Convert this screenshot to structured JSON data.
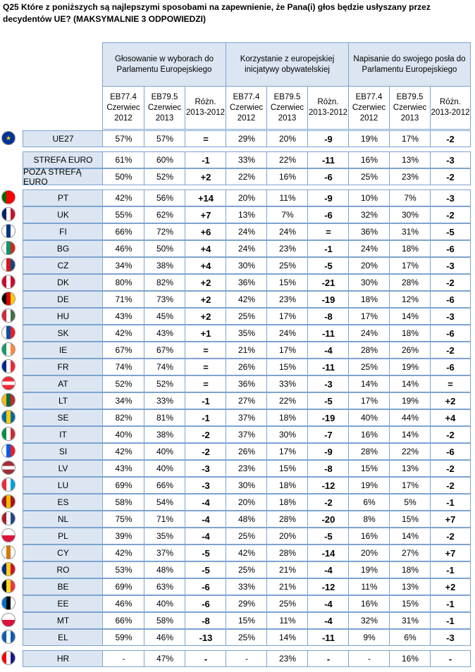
{
  "title": "Q25 Które z poniższych są najlepszymi sposobami na zapewnienie, że Pana(i) głos będzie usłyszany przez decydentów UE? (MAKSYMALNIE 3 ODPOWIEDZI)",
  "groups": [
    "Głosowanie w wyborach do Parlamentu Europejskiego",
    "Korzystanie z europejskiej inicjatywy obywatelskiej",
    "Napisanie do swojego posła do Parlamentu Europejskiego"
  ],
  "subheaders": [
    "EB77.4 Czerwiec 2012",
    "EB79.5 Czerwiec 2013",
    "Różn. 2013-2012"
  ],
  "rows": [
    {
      "label": "UE27",
      "flag": [
        "#003399",
        "#003399",
        "#003399"
      ],
      "v": [
        "57%",
        "57%",
        "=",
        "29%",
        "20%",
        "-9",
        "19%",
        "17%",
        "-2"
      ]
    },
    {
      "label": "STREFA EURO",
      "flag": null,
      "v": [
        "61%",
        "60%",
        "-1",
        "33%",
        "22%",
        "-11",
        "16%",
        "13%",
        "-3"
      ]
    },
    {
      "label": "POZA STREFĄ EURO",
      "flag": null,
      "v": [
        "50%",
        "52%",
        "+2",
        "22%",
        "16%",
        "-6",
        "25%",
        "23%",
        "-2"
      ]
    },
    {
      "label": "PT",
      "flag": [
        "#006600",
        "#ff0000",
        "#ff0000"
      ],
      "v": [
        "42%",
        "56%",
        "+14",
        "20%",
        "11%",
        "-9",
        "10%",
        "7%",
        "-3"
      ]
    },
    {
      "label": "UK",
      "flag": [
        "#012169",
        "#ffffff",
        "#c8102e"
      ],
      "v": [
        "55%",
        "62%",
        "+7",
        "13%",
        "7%",
        "-6",
        "32%",
        "30%",
        "-2"
      ]
    },
    {
      "label": "FI",
      "flag": [
        "#ffffff",
        "#003580",
        "#ffffff"
      ],
      "v": [
        "66%",
        "72%",
        "+6",
        "24%",
        "24%",
        "=",
        "36%",
        "31%",
        "-5"
      ]
    },
    {
      "label": "BG",
      "flag": [
        "#ffffff",
        "#00966e",
        "#d62612"
      ],
      "v": [
        "46%",
        "50%",
        "+4",
        "24%",
        "23%",
        "-1",
        "24%",
        "18%",
        "-6"
      ]
    },
    {
      "label": "CZ",
      "flag": [
        "#ffffff",
        "#d7141a",
        "#11457e"
      ],
      "v": [
        "34%",
        "38%",
        "+4",
        "30%",
        "25%",
        "-5",
        "20%",
        "17%",
        "-3"
      ]
    },
    {
      "label": "DK",
      "flag": [
        "#c60c30",
        "#ffffff",
        "#c60c30"
      ],
      "v": [
        "80%",
        "82%",
        "+2",
        "36%",
        "15%",
        "-21",
        "30%",
        "28%",
        "-2"
      ]
    },
    {
      "label": "DE",
      "flag": [
        "#000000",
        "#dd0000",
        "#ffce00"
      ],
      "v": [
        "71%",
        "73%",
        "+2",
        "42%",
        "23%",
        "-19",
        "18%",
        "12%",
        "-6"
      ]
    },
    {
      "label": "HU",
      "flag": [
        "#cd2a3e",
        "#ffffff",
        "#436f4d"
      ],
      "v": [
        "43%",
        "45%",
        "+2",
        "25%",
        "17%",
        "-8",
        "17%",
        "14%",
        "-3"
      ]
    },
    {
      "label": "SK",
      "flag": [
        "#ffffff",
        "#0b4ea2",
        "#ee1c25"
      ],
      "v": [
        "42%",
        "43%",
        "+1",
        "35%",
        "24%",
        "-11",
        "24%",
        "18%",
        "-6"
      ]
    },
    {
      "label": "IE",
      "flag": [
        "#169b62",
        "#ffffff",
        "#ff883e"
      ],
      "v": [
        "67%",
        "67%",
        "=",
        "21%",
        "17%",
        "-4",
        "28%",
        "26%",
        "-2"
      ]
    },
    {
      "label": "FR",
      "flag": [
        "#002395",
        "#ffffff",
        "#ed2939"
      ],
      "v": [
        "74%",
        "74%",
        "=",
        "26%",
        "15%",
        "-11",
        "25%",
        "19%",
        "-6"
      ]
    },
    {
      "label": "AT",
      "flag": [
        "#ed2939",
        "#ffffff",
        "#ed2939"
      ],
      "v": [
        "52%",
        "52%",
        "=",
        "36%",
        "33%",
        "-3",
        "14%",
        "14%",
        "="
      ]
    },
    {
      "label": "LT",
      "flag": [
        "#fdb913",
        "#006a44",
        "#c1272d"
      ],
      "v": [
        "34%",
        "33%",
        "-1",
        "27%",
        "22%",
        "-5",
        "17%",
        "19%",
        "+2"
      ]
    },
    {
      "label": "SE",
      "flag": [
        "#006aa7",
        "#fecc00",
        "#006aa7"
      ],
      "v": [
        "82%",
        "81%",
        "-1",
        "37%",
        "18%",
        "-19",
        "40%",
        "44%",
        "+4"
      ]
    },
    {
      "label": "IT",
      "flag": [
        "#009246",
        "#ffffff",
        "#ce2b37"
      ],
      "v": [
        "40%",
        "38%",
        "-2",
        "37%",
        "30%",
        "-7",
        "16%",
        "14%",
        "-2"
      ]
    },
    {
      "label": "SI",
      "flag": [
        "#ffffff",
        "#005ce5",
        "#ed1c24"
      ],
      "v": [
        "42%",
        "40%",
        "-2",
        "26%",
        "17%",
        "-9",
        "28%",
        "22%",
        "-6"
      ]
    },
    {
      "label": "LV",
      "flag": [
        "#9e3039",
        "#ffffff",
        "#9e3039"
      ],
      "v": [
        "43%",
        "40%",
        "-3",
        "23%",
        "15%",
        "-8",
        "15%",
        "13%",
        "-2"
      ]
    },
    {
      "label": "LU",
      "flag": [
        "#ed2939",
        "#ffffff",
        "#00a1de"
      ],
      "v": [
        "69%",
        "66%",
        "-3",
        "30%",
        "18%",
        "-12",
        "19%",
        "17%",
        "-2"
      ]
    },
    {
      "label": "ES",
      "flag": [
        "#aa151b",
        "#f1bf00",
        "#aa151b"
      ],
      "v": [
        "58%",
        "54%",
        "-4",
        "20%",
        "18%",
        "-2",
        "6%",
        "5%",
        "-1"
      ]
    },
    {
      "label": "NL",
      "flag": [
        "#ae1c28",
        "#ffffff",
        "#21468b"
      ],
      "v": [
        "75%",
        "71%",
        "-4",
        "48%",
        "28%",
        "-20",
        "8%",
        "15%",
        "+7"
      ]
    },
    {
      "label": "PL",
      "flag": [
        "#ffffff",
        "#ffffff",
        "#dc143c"
      ],
      "v": [
        "39%",
        "35%",
        "-4",
        "25%",
        "20%",
        "-5",
        "16%",
        "14%",
        "-2"
      ]
    },
    {
      "label": "CY",
      "flag": [
        "#ffffff",
        "#d57800",
        "#ffffff"
      ],
      "v": [
        "42%",
        "37%",
        "-5",
        "42%",
        "28%",
        "-14",
        "20%",
        "27%",
        "+7"
      ]
    },
    {
      "label": "RO",
      "flag": [
        "#002b7f",
        "#fcd116",
        "#ce1126"
      ],
      "v": [
        "53%",
        "48%",
        "-5",
        "25%",
        "21%",
        "-4",
        "19%",
        "18%",
        "-1"
      ]
    },
    {
      "label": "BE",
      "flag": [
        "#000000",
        "#fdda24",
        "#ef3340"
      ],
      "v": [
        "69%",
        "63%",
        "-6",
        "33%",
        "21%",
        "-12",
        "11%",
        "13%",
        "+2"
      ]
    },
    {
      "label": "EE",
      "flag": [
        "#0072ce",
        "#000000",
        "#ffffff"
      ],
      "v": [
        "46%",
        "40%",
        "-6",
        "29%",
        "25%",
        "-4",
        "16%",
        "15%",
        "-1"
      ]
    },
    {
      "label": "MT",
      "flag": [
        "#ffffff",
        "#ffffff",
        "#cf142b"
      ],
      "v": [
        "66%",
        "58%",
        "-8",
        "15%",
        "11%",
        "-4",
        "32%",
        "31%",
        "-1"
      ]
    },
    {
      "label": "EL",
      "flag": [
        "#0d5eaf",
        "#ffffff",
        "#0d5eaf"
      ],
      "v": [
        "59%",
        "46%",
        "-13",
        "25%",
        "14%",
        "-11",
        "9%",
        "6%",
        "-3"
      ]
    },
    {
      "label": "HR",
      "flag": [
        "#ff0000",
        "#ffffff",
        "#171796"
      ],
      "v": [
        "-",
        "47%",
        "-",
        "-",
        "23%",
        "-",
        "-",
        "16%",
        "-"
      ]
    }
  ]
}
